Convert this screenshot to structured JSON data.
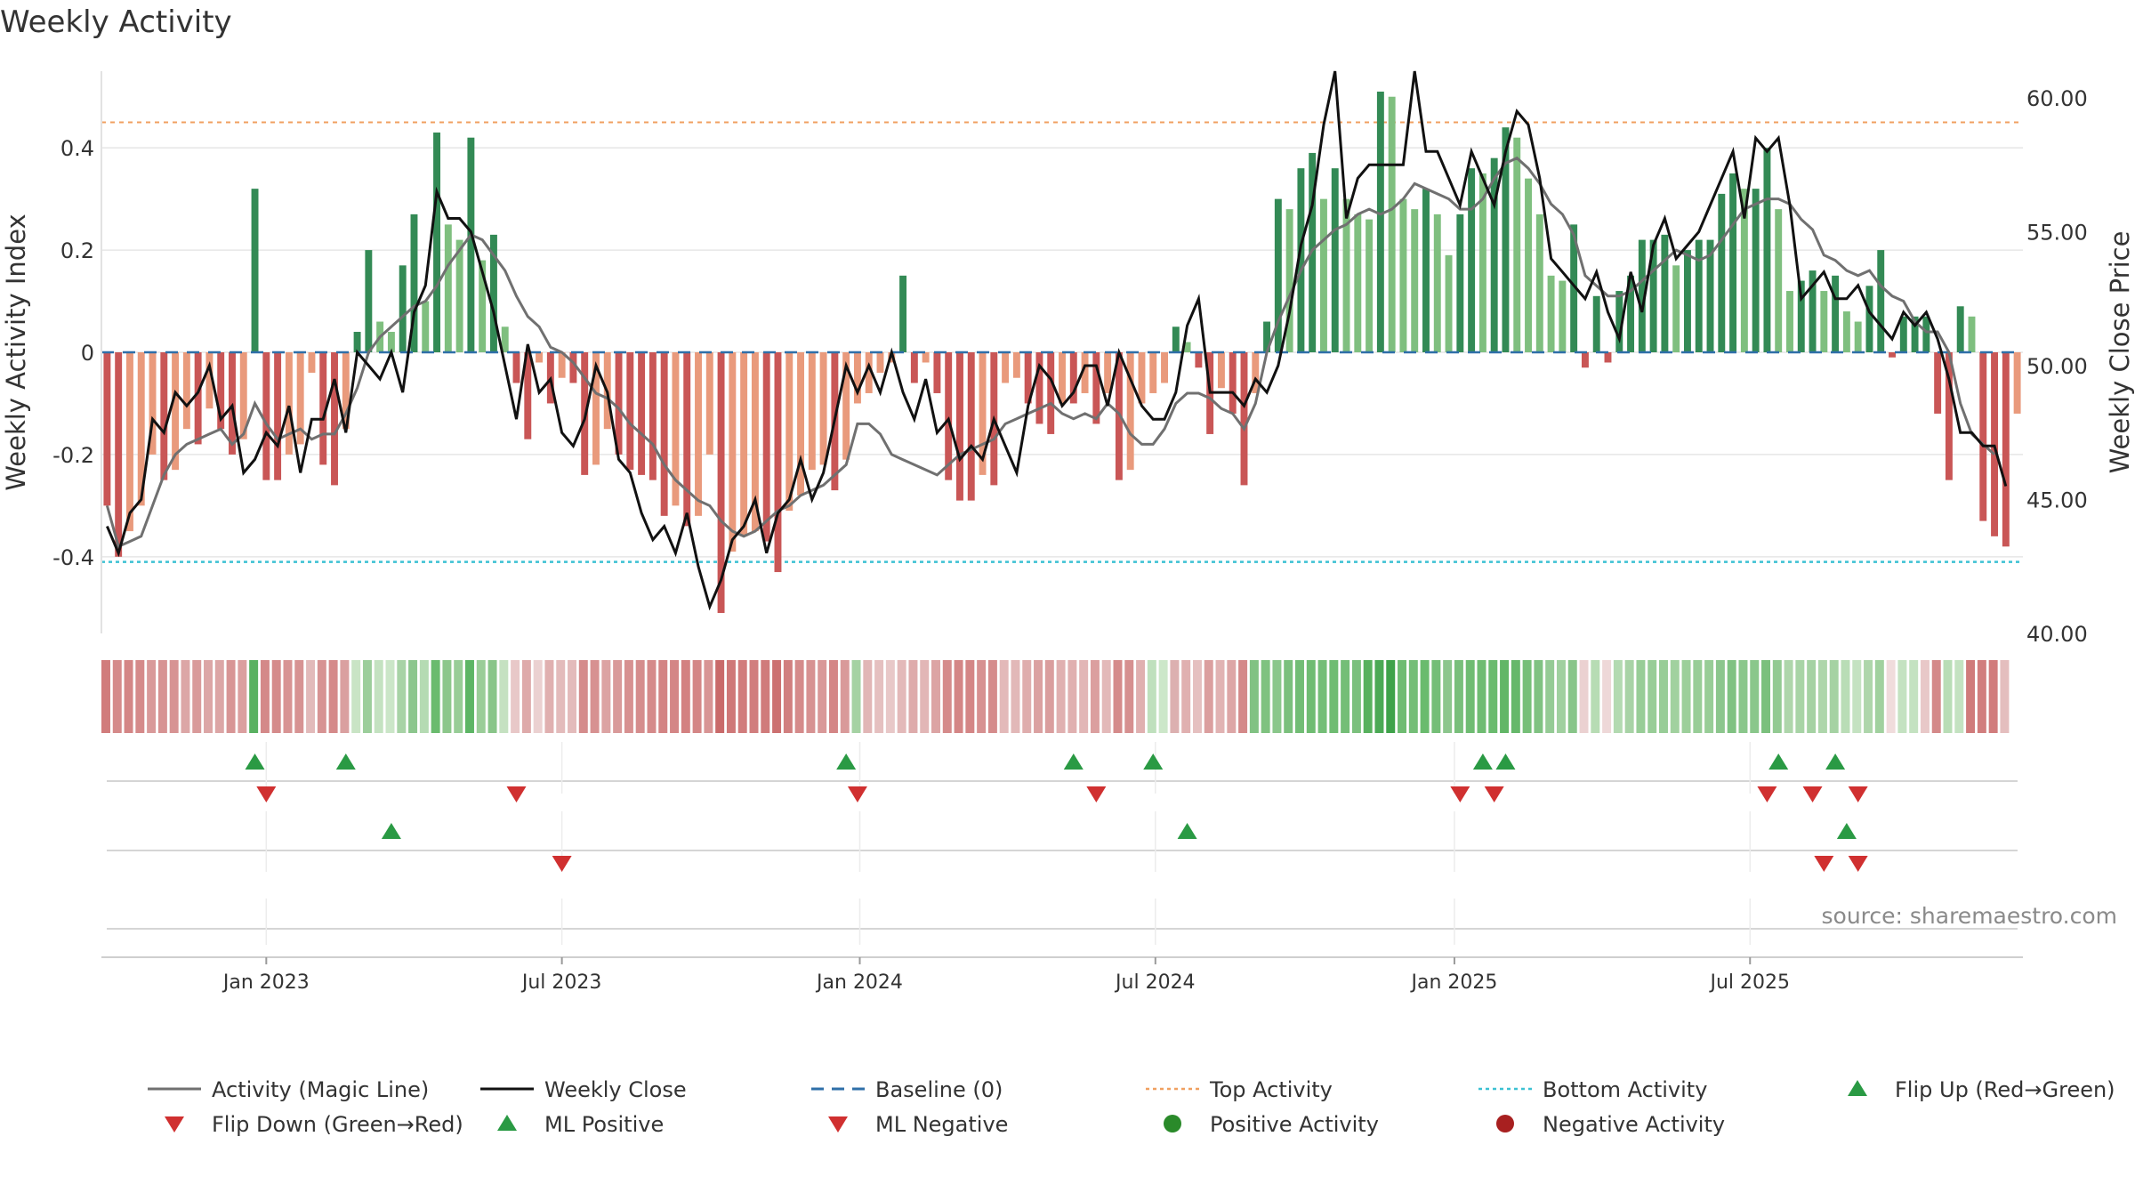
{
  "chart_data": {
    "type": "bar",
    "title": "Weekly Activity",
    "ylabel_left": "Weekly Activity Index",
    "ylabel_right": "Weekly Close Price",
    "source": "source: sharemaestro.com",
    "ylim_left": [
      -0.55,
      0.55
    ],
    "ylim_right": [
      40,
      61
    ],
    "left_ticks": [
      {
        "value": 0.4,
        "label": "0.4"
      },
      {
        "value": 0.2,
        "label": "0.2"
      },
      {
        "value": 0,
        "label": "0"
      },
      {
        "value": -0.2,
        "label": "-0.2"
      },
      {
        "value": -0.4,
        "label": "-0.4"
      }
    ],
    "right_ticks": [
      {
        "value": 60,
        "label": "60.00"
      },
      {
        "value": 55,
        "label": "55.00"
      },
      {
        "value": 50,
        "label": "50.00"
      },
      {
        "value": 45,
        "label": "45.00"
      },
      {
        "value": 40,
        "label": "40.00"
      }
    ],
    "x_ticks": [
      {
        "week": 14.5,
        "label": "Jan 2023"
      },
      {
        "week": 40.5,
        "label": "Jul 2023"
      },
      {
        "week": 66.7,
        "label": "Jan 2024"
      },
      {
        "week": 92.7,
        "label": "Jul 2024"
      },
      {
        "week": 119,
        "label": "Jan 2025"
      },
      {
        "week": 145,
        "label": "Jul 2025"
      }
    ],
    "reference_lines": {
      "top_activity": 0.45,
      "bottom_activity": -0.41,
      "baseline": 0
    },
    "activity": [
      -0.3,
      -0.4,
      -0.35,
      -0.3,
      -0.2,
      -0.25,
      -0.23,
      -0.15,
      -0.18,
      -0.11,
      -0.15,
      -0.2,
      -0.17,
      0.32,
      -0.25,
      -0.25,
      -0.2,
      -0.18,
      -0.04,
      -0.22,
      -0.26,
      -0.15,
      0.04,
      0.2,
      0.06,
      0.04,
      0.17,
      0.27,
      0.1,
      0.43,
      0.25,
      0.22,
      0.42,
      0.18,
      0.23,
      0.05,
      -0.06,
      -0.17,
      -0.02,
      -0.1,
      -0.05,
      -0.06,
      -0.24,
      -0.22,
      -0.15,
      -0.2,
      -0.23,
      -0.24,
      -0.25,
      -0.32,
      -0.3,
      -0.34,
      -0.32,
      -0.2,
      -0.51,
      -0.39,
      -0.36,
      -0.35,
      -0.37,
      -0.43,
      -0.31,
      -0.28,
      -0.23,
      -0.22,
      -0.27,
      -0.21,
      -0.1,
      -0.08,
      -0.04,
      -0.02,
      0.15,
      -0.06,
      -0.02,
      -0.08,
      -0.25,
      -0.29,
      -0.29,
      -0.24,
      -0.26,
      -0.06,
      -0.05,
      -0.1,
      -0.14,
      -0.16,
      -0.1,
      -0.1,
      -0.08,
      -0.14,
      -0.08,
      -0.25,
      -0.23,
      -0.1,
      -0.08,
      -0.06,
      0.05,
      0.02,
      -0.03,
      -0.16,
      -0.07,
      -0.12,
      -0.26,
      -0.08,
      0.06,
      0.3,
      0.28,
      0.36,
      0.39,
      0.3,
      0.36,
      0.3,
      0.27,
      0.26,
      0.51,
      0.5,
      0.3,
      0.28,
      0.32,
      0.27,
      0.19,
      0.27,
      0.36,
      0.35,
      0.38,
      0.44,
      0.42,
      0.34,
      0.27,
      0.15,
      0.14,
      0.25,
      -0.03,
      0.11,
      -0.02,
      0.12,
      0.15,
      0.22,
      0.22,
      0.23,
      0.17,
      0.2,
      0.22,
      0.22,
      0.31,
      0.35,
      0.32,
      0.32,
      0.4,
      0.28,
      0.12,
      0.14,
      0.16,
      0.12,
      0.15,
      0.08,
      0.06,
      0.13,
      0.2,
      -0.01,
      0.07,
      0.07,
      0.07,
      -0.12,
      -0.25,
      0.09,
      0.07,
      -0.33,
      -0.36,
      -0.38,
      -0.12
    ],
    "magic_line": [
      -0.3,
      -0.38,
      -0.37,
      -0.36,
      -0.3,
      -0.24,
      -0.2,
      -0.18,
      -0.17,
      -0.16,
      -0.15,
      -0.18,
      -0.16,
      -0.1,
      -0.14,
      -0.17,
      -0.16,
      -0.15,
      -0.17,
      -0.16,
      -0.16,
      -0.12,
      -0.07,
      0.0,
      0.03,
      0.05,
      0.07,
      0.09,
      0.1,
      0.13,
      0.17,
      0.2,
      0.23,
      0.22,
      0.19,
      0.16,
      0.11,
      0.07,
      0.05,
      0.01,
      0.0,
      -0.02,
      -0.05,
      -0.08,
      -0.09,
      -0.11,
      -0.14,
      -0.16,
      -0.18,
      -0.22,
      -0.25,
      -0.27,
      -0.29,
      -0.3,
      -0.33,
      -0.35,
      -0.36,
      -0.35,
      -0.33,
      -0.31,
      -0.3,
      -0.28,
      -0.27,
      -0.26,
      -0.24,
      -0.22,
      -0.14,
      -0.14,
      -0.16,
      -0.2,
      -0.21,
      -0.22,
      -0.23,
      -0.24,
      -0.22,
      -0.2,
      -0.19,
      -0.18,
      -0.17,
      -0.14,
      -0.13,
      -0.12,
      -0.11,
      -0.1,
      -0.12,
      -0.13,
      -0.12,
      -0.13,
      -0.1,
      -0.12,
      -0.16,
      -0.18,
      -0.18,
      -0.15,
      -0.1,
      -0.08,
      -0.08,
      -0.09,
      -0.11,
      -0.12,
      -0.15,
      -0.1,
      0.0,
      0.06,
      0.11,
      0.16,
      0.2,
      0.22,
      0.24,
      0.25,
      0.27,
      0.28,
      0.27,
      0.28,
      0.3,
      0.33,
      0.32,
      0.31,
      0.3,
      0.28,
      0.28,
      0.3,
      0.34,
      0.37,
      0.38,
      0.36,
      0.33,
      0.29,
      0.27,
      0.23,
      0.15,
      0.13,
      0.11,
      0.11,
      0.12,
      0.14,
      0.16,
      0.18,
      0.2,
      0.19,
      0.18,
      0.19,
      0.22,
      0.25,
      0.28,
      0.29,
      0.3,
      0.3,
      0.29,
      0.26,
      0.24,
      0.19,
      0.18,
      0.16,
      0.15,
      0.16,
      0.13,
      0.11,
      0.1,
      0.06,
      0.04,
      0.04,
      0.0,
      -0.1,
      -0.16,
      -0.18,
      -0.2
    ],
    "weekly_close": [
      44.0,
      43.0,
      44.5,
      45.0,
      48.0,
      47.5,
      49.0,
      48.5,
      49.0,
      50.0,
      48.0,
      48.5,
      46.0,
      46.5,
      47.5,
      47.0,
      48.5,
      46.0,
      48.0,
      48.0,
      49.5,
      47.5,
      50.5,
      50.0,
      49.5,
      50.5,
      49.0,
      52.0,
      53.0,
      56.5,
      55.5,
      55.5,
      55.0,
      53.5,
      52.0,
      50.0,
      48.0,
      50.8,
      49.0,
      49.5,
      47.5,
      47.0,
      48.0,
      50.0,
      49.0,
      46.5,
      46.0,
      44.5,
      43.5,
      44.0,
      43.0,
      44.5,
      42.5,
      41.0,
      42.0,
      43.5,
      44.0,
      45.0,
      43.0,
      44.5,
      45.0,
      46.5,
      45.0,
      46.0,
      48.0,
      50.0,
      49.0,
      50.0,
      49.0,
      50.5,
      49.0,
      48.0,
      49.5,
      47.5,
      48.0,
      46.5,
      47.0,
      46.5,
      48.0,
      47.0,
      46.0,
      48.5,
      50.0,
      49.5,
      48.5,
      49.0,
      50.0,
      50.0,
      48.5,
      50.5,
      49.5,
      48.5,
      48.0,
      48.0,
      49.0,
      51.5,
      52.5,
      49.0,
      49.0,
      49.0,
      48.5,
      49.5,
      49.0,
      50.0,
      52.0,
      54.5,
      56.0,
      59.0,
      61.0,
      55.5,
      57.0,
      57.5,
      57.5,
      57.5,
      57.5,
      61.0,
      58.0,
      58.0,
      57.0,
      56.0,
      58.0,
      57.0,
      56.0,
      58.0,
      59.5,
      59.0,
      57.0,
      54.0,
      53.5,
      53.0,
      52.5,
      53.5,
      52.0,
      51.0,
      53.5,
      52.0,
      54.5,
      55.5,
      54.0,
      54.5,
      55.0,
      56.0,
      57.0,
      58.0,
      55.5,
      58.5,
      58.0,
      58.5,
      56.0,
      52.5,
      53.0,
      53.5,
      52.5,
      52.5,
      53.0,
      52.0,
      51.5,
      51.0,
      52.0,
      51.5,
      52.0,
      51.0,
      49.5,
      47.5,
      47.5,
      47.0,
      47.0,
      45.5
    ],
    "heat_colors": [
      "#d17c7c",
      "#d58a8a",
      "#d48686",
      "#d58a8a",
      "#d99a9a",
      "#d79393",
      "#d79393",
      "#dca6a6",
      "#d99a9a",
      "#dca6a6",
      "#dca6a6",
      "#d89595",
      "#db9f9f",
      "#59b161",
      "#d48989",
      "#d58b8b",
      "#d89494",
      "#d79393",
      "#e2baba",
      "#d79393",
      "#d58a8a",
      "#daa0a0",
      "#c9e4c5",
      "#9cce9b",
      "#c4e2c1",
      "#cbe6c8",
      "#a8d3a6",
      "#8cc68d",
      "#b5dbb3",
      "#6abb6e",
      "#8cc78b",
      "#98cd97",
      "#5db565",
      "#9acd98",
      "#89c589",
      "#c5e1c1",
      "#e8c8c8",
      "#deaaaa",
      "#ebd1d1",
      "#e0b0b0",
      "#e3bbbb",
      "#e3bbbb",
      "#d58c8c",
      "#d79191",
      "#dca3a3",
      "#d99a9a",
      "#d79191",
      "#d58d8d",
      "#d58a8a",
      "#d38484",
      "#d48686",
      "#d38181",
      "#d48686",
      "#d89595",
      "#c96a6a",
      "#cf7878",
      "#d17c7c",
      "#d17e7e",
      "#d07b7b",
      "#cc7070",
      "#d17f7f",
      "#d58b8b",
      "#d79292",
      "#d99898",
      "#d48686",
      "#d99a9a",
      "#a5d2a3",
      "#e1b6b6",
      "#e5c0c0",
      "#e8c8c8",
      "#e3b9b9",
      "#deabab",
      "#e2b6b6",
      "#dca4a4",
      "#d58b8b",
      "#d48686",
      "#d48686",
      "#d79191",
      "#d58c8c",
      "#e3b9b9",
      "#e2b8b8",
      "#dfadad",
      "#dba1a1",
      "#da9e9e",
      "#e0b0b0",
      "#e0b0b0",
      "#e2b6b6",
      "#db9f9f",
      "#e3b9b9",
      "#d58b8b",
      "#d69090",
      "#e0b0b0",
      "#bfe0bd",
      "#cce7c9",
      "#dcb0b0",
      "#e0b0b0",
      "#e5c0c0",
      "#db9f9f",
      "#e1b3b3",
      "#dda6a6",
      "#d48989",
      "#81c283",
      "#7fc280",
      "#8ac78b",
      "#7bc07d",
      "#72bd75",
      "#6fbc72",
      "#74be77",
      "#6fbc72",
      "#74be77",
      "#7bc07d",
      "#58b15e",
      "#4ba955",
      "#3fa24a",
      "#6fbc72",
      "#74be77",
      "#6abb6e",
      "#74be77",
      "#8cc68d",
      "#79bf7b",
      "#6fbc72",
      "#6fbc72",
      "#6abb6e",
      "#62b667",
      "#66b86b",
      "#76bf78",
      "#80c282",
      "#95cb95",
      "#a0d09f",
      "#88c589",
      "#ebd1d1",
      "#b7dcb4",
      "#eed8d8",
      "#b3dab1",
      "#a8d3a6",
      "#98cd97",
      "#98cd97",
      "#98cd97",
      "#a1d19f",
      "#9ccf9a",
      "#98cd97",
      "#98cd97",
      "#8cc68d",
      "#80c282",
      "#8ac78b",
      "#8ac78b",
      "#7bc07d",
      "#92ca92",
      "#aed6ab",
      "#a8d4a6",
      "#a5d2a3",
      "#aed6ab",
      "#a5d2a3",
      "#b9ddb6",
      "#c4e2c1",
      "#aed6ab",
      "#a1d19f",
      "#f0dcdc",
      "#c4e2c1",
      "#c4e2c1",
      "#e8c8c8",
      "#d48989",
      "#b9ddb6",
      "#c4e2c1",
      "#d07b7b",
      "#d17e7e",
      "#d17c7c",
      "#e4bebe"
    ],
    "signal_rows": [
      {
        "ups": [
          13,
          21,
          65,
          85,
          92,
          121,
          123,
          147,
          152
        ],
        "downs": [
          14,
          36,
          66,
          87,
          119,
          122,
          146,
          150,
          154
        ]
      },
      {
        "ups": [
          25,
          95,
          153
        ],
        "downs": [
          40,
          151,
          154
        ]
      },
      {
        "ups": [],
        "downs": []
      }
    ],
    "legend": [
      {
        "key": "magic",
        "label": "Activity (Magic Line)",
        "color": "#707070"
      },
      {
        "key": "close",
        "label": "Weekly Close",
        "color": "#111111"
      },
      {
        "key": "baseline",
        "label": "Baseline (0)",
        "color": "#2f6fa8"
      },
      {
        "key": "top",
        "label": "Top Activity",
        "color": "#f0a060"
      },
      {
        "key": "bottom",
        "label": "Bottom Activity",
        "color": "#3cc1d3"
      },
      {
        "key": "flip_up",
        "label": "Flip Up (Red→Green)",
        "color": "#2a9a44"
      },
      {
        "key": "flip_down",
        "label": "Flip Down (Green→Red)",
        "color": "#d03030"
      },
      {
        "key": "ml_pos",
        "label": "ML Positive",
        "color": "#2a9a44"
      },
      {
        "key": "ml_neg",
        "label": "ML Negative",
        "color": "#d03030"
      },
      {
        "key": "pos_act",
        "label": "Positive Activity",
        "color": "#2a8a2a"
      },
      {
        "key": "neg_act",
        "label": "Negative Activity",
        "color": "#a82020"
      }
    ],
    "colors": {
      "pos_strong": "#338a55",
      "pos_light": "#7fbf7f",
      "neg_strong": "#c95656",
      "neg_light": "#e99a7c",
      "grid": "#e6e6e6",
      "text": "#333333"
    }
  }
}
